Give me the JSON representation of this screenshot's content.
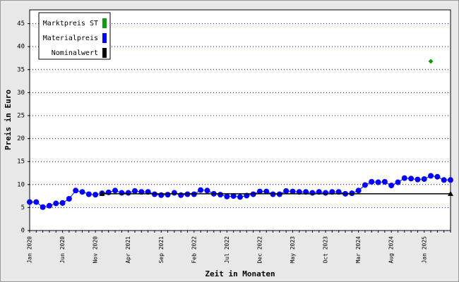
{
  "chart_data": {
    "type": "line",
    "xlabel": "Zeit in Monaten",
    "ylabel": "Preis in Euro",
    "categories": [
      "Jan 2020",
      null,
      null,
      null,
      null,
      "Jun 2020",
      null,
      null,
      null,
      null,
      "Nov 2020",
      null,
      null,
      null,
      null,
      "Apr 2021",
      null,
      null,
      null,
      null,
      "Sep 2021",
      null,
      null,
      null,
      null,
      "Feb 2022",
      null,
      null,
      null,
      null,
      "Jul 2022",
      null,
      null,
      null,
      null,
      "Dec 2022",
      null,
      null,
      null,
      null,
      "May 2023",
      null,
      null,
      null,
      null,
      "Oct 2023",
      null,
      null,
      null,
      null,
      "Mar 2024",
      null,
      null,
      null,
      null,
      "Aug 2024",
      null,
      null,
      null,
      null,
      "Jan 2025",
      null,
      null,
      null,
      null
    ],
    "series": [
      {
        "name": "Marktpreis ST",
        "color": "#119911",
        "marker": "diamond",
        "values": [
          null,
          null,
          null,
          null,
          null,
          null,
          null,
          null,
          null,
          null,
          null,
          null,
          null,
          null,
          null,
          null,
          null,
          null,
          null,
          null,
          null,
          null,
          null,
          null,
          null,
          null,
          null,
          null,
          null,
          null,
          null,
          null,
          null,
          null,
          null,
          null,
          null,
          null,
          null,
          null,
          null,
          null,
          null,
          null,
          null,
          null,
          null,
          null,
          null,
          null,
          null,
          null,
          null,
          null,
          null,
          null,
          null,
          null,
          null,
          null,
          null,
          36.8,
          null,
          null,
          null
        ]
      },
      {
        "name": "Materialpreis",
        "color": "#0000ff",
        "marker": "circle",
        "values": [
          6.2,
          6.2,
          5.1,
          5.4,
          5.9,
          6.0,
          6.9,
          8.7,
          8.4,
          7.9,
          7.8,
          8.1,
          8.3,
          8.7,
          8.2,
          8.2,
          8.6,
          8.4,
          8.4,
          7.9,
          7.7,
          7.8,
          8.2,
          7.7,
          7.9,
          7.9,
          8.8,
          8.7,
          8.0,
          7.8,
          7.4,
          7.5,
          7.3,
          7.6,
          7.9,
          8.5,
          8.5,
          7.9,
          7.9,
          8.6,
          8.5,
          8.4,
          8.4,
          8.2,
          8.4,
          8.2,
          8.4,
          8.4,
          8.0,
          8.1,
          8.7,
          9.9,
          10.6,
          10.5,
          10.6,
          9.8,
          10.5,
          11.4,
          11.3,
          11.1,
          11.2,
          11.9,
          11.7,
          11.0,
          11.0
        ]
      },
      {
        "name": "Nominalwert",
        "color": "#000000",
        "marker": "triangle",
        "values": [
          null,
          null,
          null,
          null,
          null,
          null,
          null,
          null,
          null,
          null,
          null,
          8,
          8,
          8,
          8,
          8,
          8,
          8,
          8,
          8,
          8,
          8,
          8,
          8,
          8,
          8,
          8,
          8,
          8,
          8,
          8,
          8,
          8,
          8,
          8,
          8,
          8,
          8,
          8,
          8,
          8,
          8,
          8,
          8,
          8,
          8,
          8,
          8,
          8,
          8,
          8,
          8,
          8,
          8,
          8,
          8,
          8,
          8,
          8,
          8,
          8,
          8,
          8,
          8,
          8
        ]
      }
    ],
    "ylim": [
      0,
      48
    ],
    "yticks": [
      0,
      5,
      10,
      15,
      20,
      25,
      30,
      35,
      40,
      45
    ],
    "grid": true,
    "legend": "upper left"
  }
}
